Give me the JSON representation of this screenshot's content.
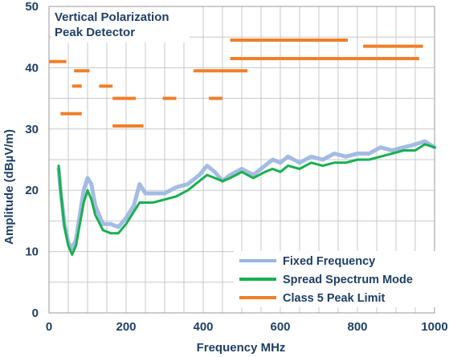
{
  "chart_data": {
    "type": "line",
    "title": "Vertical Polarization",
    "subtitle": "Peak Detector",
    "xlabel": "Frequency MHz",
    "ylabel": "Amplitude (dBµV/m)",
    "xlim": [
      0,
      1000
    ],
    "ylim": [
      0,
      50
    ],
    "x_ticks": [
      0,
      200,
      400,
      600,
      800,
      1000
    ],
    "x_tick_labels": [
      "0",
      "200",
      "400",
      "600",
      "800",
      "1000"
    ],
    "y_ticks": [
      0,
      10,
      20,
      30,
      40,
      50
    ],
    "y_tick_labels": [
      "0",
      "10",
      "20",
      "30",
      "40",
      "50"
    ],
    "grid": true,
    "legend_position": "bottom-right",
    "colors": {
      "fixed": "#9ab5e0",
      "spread": "#17b04f",
      "limit": "#f07f2a",
      "text": "#1f3f66",
      "grid": "#c8c8c8"
    },
    "series": [
      {
        "name": "Fixed Frequency",
        "x": [
          25,
          30,
          40,
          50,
          60,
          70,
          80,
          90,
          100,
          110,
          120,
          140,
          160,
          180,
          200,
          220,
          235,
          250,
          270,
          300,
          330,
          360,
          390,
          410,
          430,
          450,
          470,
          500,
          530,
          560,
          580,
          600,
          620,
          650,
          680,
          710,
          740,
          770,
          800,
          830,
          860,
          890,
          920,
          950,
          975,
          1000
        ],
        "y": [
          23.5,
          20,
          14.5,
          11.5,
          10.5,
          12,
          16,
          20,
          22,
          21,
          17.5,
          14.5,
          14.5,
          14,
          15.5,
          17.5,
          21,
          19.5,
          19.5,
          19.5,
          20.5,
          21,
          22.5,
          24,
          23,
          21.5,
          22.5,
          23.5,
          22.5,
          24,
          25,
          24.5,
          25.5,
          24.5,
          25.5,
          25,
          26,
          25.5,
          26,
          26,
          27,
          26.5,
          27,
          27.5,
          28,
          27
        ]
      },
      {
        "name": "Spread Spectrum Mode",
        "x": [
          25,
          30,
          40,
          50,
          60,
          70,
          80,
          90,
          100,
          110,
          120,
          140,
          160,
          180,
          200,
          220,
          235,
          250,
          270,
          300,
          330,
          360,
          390,
          410,
          430,
          450,
          470,
          500,
          530,
          560,
          580,
          600,
          620,
          650,
          680,
          710,
          740,
          770,
          800,
          830,
          860,
          890,
          920,
          950,
          975,
          1000
        ],
        "y": [
          24,
          20,
          14,
          11,
          9.5,
          11,
          14.5,
          18,
          20,
          18.5,
          16,
          13.5,
          13,
          13,
          14.5,
          16.5,
          18,
          18,
          18,
          18.5,
          19,
          20,
          21.5,
          22.5,
          22,
          21.5,
          22,
          23,
          22,
          23,
          23.5,
          23,
          24,
          23.5,
          24.5,
          24,
          24.5,
          24.5,
          25,
          25,
          25.5,
          26,
          26.5,
          26.5,
          27.5,
          27
        ]
      }
    ],
    "limit_series": {
      "name": "Class 5 Peak Limit",
      "segments": [
        {
          "x": [
            0,
            45
          ],
          "y": 41
        },
        {
          "x": [
            65,
            105
          ],
          "y": 39.5
        },
        {
          "x": [
            60,
            85
          ],
          "y": 37
        },
        {
          "x": [
            130,
            165
          ],
          "y": 37
        },
        {
          "x": [
            165,
            225
          ],
          "y": 35
        },
        {
          "x": [
            295,
            330
          ],
          "y": 35
        },
        {
          "x": [
            415,
            450
          ],
          "y": 35
        },
        {
          "x": [
            30,
            85
          ],
          "y": 32.5
        },
        {
          "x": [
            165,
            245
          ],
          "y": 30.5
        },
        {
          "x": [
            375,
            515
          ],
          "y": 39.5
        },
        {
          "x": [
            470,
            775
          ],
          "y": 44.5
        },
        {
          "x": [
            470,
            960
          ],
          "y": 41.5
        },
        {
          "x": [
            815,
            970
          ],
          "y": 43.5
        }
      ]
    }
  }
}
